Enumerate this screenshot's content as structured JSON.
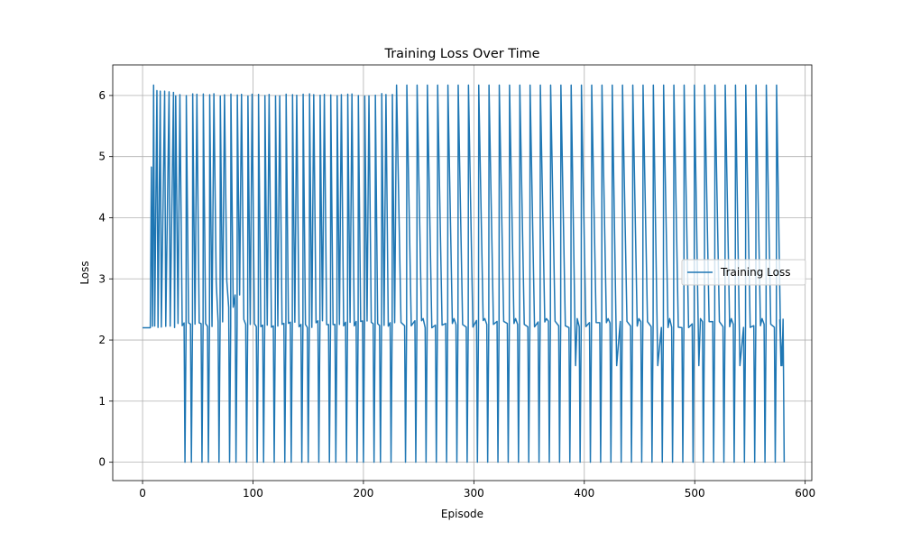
{
  "chart_data": {
    "type": "line",
    "title": "Training Loss Over Time",
    "xlabel": "Episode",
    "ylabel": "Loss",
    "xlim": [
      -27,
      606
    ],
    "ylim": [
      -0.3,
      6.5
    ],
    "xticks": [
      0,
      100,
      200,
      300,
      400,
      500,
      600
    ],
    "yticks": [
      0,
      1,
      2,
      3,
      4,
      5,
      6
    ],
    "grid": true,
    "legend": {
      "position": "center right",
      "entries": [
        "Training Loss"
      ]
    },
    "series": [
      {
        "name": "Training Loss",
        "color": "#1f77b4",
        "pattern": {
          "start_episode": 0,
          "end_episode": 581,
          "initial_flat": {
            "x": [
              0,
              7
            ],
            "y": 2.2
          },
          "peaks": [
            {
              "x": 8,
              "y": 4.83
            },
            {
              "x": 10,
              "y": 6.17
            },
            {
              "x": 13,
              "y": 6.08
            },
            {
              "x": 16,
              "y": 6.07
            },
            {
              "x": 20,
              "y": 6.07
            },
            {
              "x": 24,
              "y": 6.06
            },
            {
              "x": 28,
              "y": 6.05
            }
          ],
          "dense_region": {
            "x": [
              30,
              230
            ],
            "period": 3.8,
            "high": 6.03,
            "low": 2.2
          },
          "zero_dips": {
            "x": [
              34,
              581
            ],
            "period": 8.2,
            "value": 0.0
          },
          "tall_region": {
            "x": [
              230,
              581
            ],
            "period": 7.3,
            "high": 6.17,
            "low": 2.2
          },
          "mid_dips": {
            "x": [
              360,
              575
            ],
            "value": 1.58
          },
          "end_value": 0.0
        }
      }
    ]
  }
}
